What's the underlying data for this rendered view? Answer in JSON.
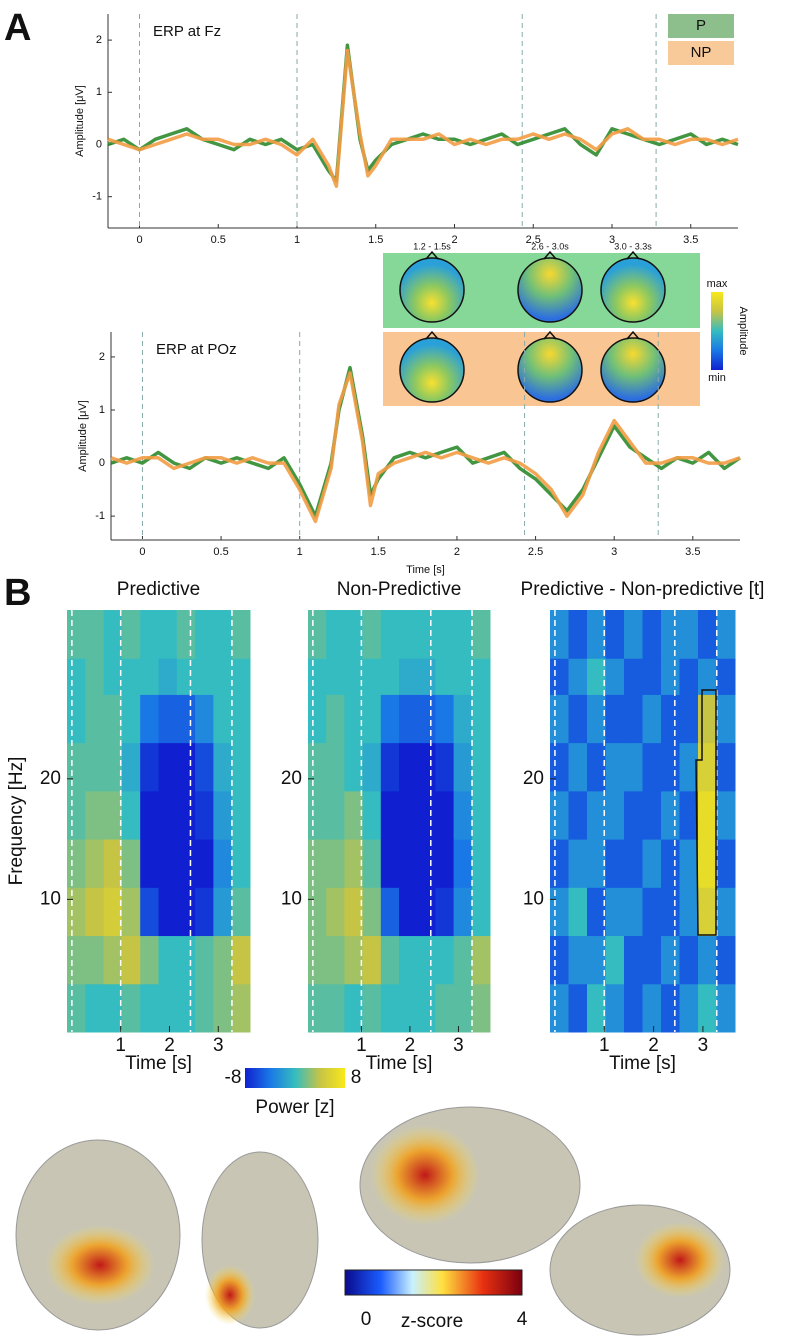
{
  "panel_labels": [
    "A",
    "B"
  ],
  "topomaps": {
    "labels": [
      "1.2 - 1.5s",
      "2.6 - 3.0s",
      "3.0 - 3.3s"
    ],
    "colorbar": {
      "max": "max",
      "min": "min",
      "label": "Amplitude"
    }
  },
  "brain_colorbar": {
    "lim": [
      0,
      4
    ],
    "label": "z-score"
  },
  "chart_data": [
    {
      "type": "line",
      "title": "ERP at Fz",
      "y_label": "Amplitude [μV]",
      "legend": "upper right",
      "xlim": [
        -0.2,
        3.8
      ],
      "ylim": [
        -1.6,
        2.5
      ],
      "xticks": [
        0,
        0.5,
        1,
        1.5,
        2,
        2.5,
        3,
        3.5
      ],
      "yticks": [
        -1,
        0,
        1,
        2
      ],
      "markers": [
        0,
        1,
        2.43,
        3.28
      ],
      "x": [
        -0.2,
        -0.1,
        0,
        0.1,
        0.2,
        0.3,
        0.4,
        0.5,
        0.6,
        0.7,
        0.8,
        0.9,
        1.0,
        1.1,
        1.2,
        1.25,
        1.32,
        1.4,
        1.45,
        1.5,
        1.6,
        1.7,
        1.8,
        1.9,
        2.0,
        2.1,
        2.2,
        2.3,
        2.4,
        2.5,
        2.6,
        2.7,
        2.8,
        2.9,
        3.0,
        3.1,
        3.2,
        3.3,
        3.4,
        3.5,
        3.6,
        3.7,
        3.8
      ],
      "series": [
        {
          "name": "P",
          "color": "#2e8b2e",
          "values": [
            0,
            0.1,
            -0.1,
            0.1,
            0.2,
            0.3,
            0.1,
            0,
            -0.1,
            0.1,
            0,
            0.1,
            -0.1,
            0,
            -0.5,
            -0.7,
            1.9,
            0.1,
            -0.5,
            -0.3,
            0,
            0.1,
            0.2,
            0.1,
            0.1,
            0,
            0.1,
            0.2,
            0,
            0.1,
            0.2,
            0.3,
            0,
            -0.2,
            0.3,
            0.2,
            0.1,
            0,
            0.1,
            0.2,
            0,
            0.1,
            0
          ]
        },
        {
          "name": "NP",
          "color": "#f39c45",
          "values": [
            0.1,
            0,
            -0.1,
            0,
            0.1,
            0.2,
            0.1,
            0.1,
            0,
            0,
            0.1,
            0,
            -0.2,
            0.1,
            -0.4,
            -0.8,
            1.8,
            0.2,
            -0.6,
            -0.4,
            0.1,
            0.1,
            0.1,
            0.2,
            0,
            0.1,
            0,
            0.1,
            0.1,
            0.2,
            0.1,
            0.2,
            0.1,
            -0.1,
            0.2,
            0.3,
            0.1,
            0.1,
            0,
            0.1,
            0.1,
            0,
            0.1
          ]
        }
      ]
    },
    {
      "type": "line",
      "title": "ERP at POz",
      "x_label": "Time [s]",
      "y_label": "Amplitude [μV]",
      "xlim": [
        -0.2,
        3.8
      ],
      "ylim": [
        -1.45,
        2.47
      ],
      "xticks": [
        0,
        0.5,
        1,
        1.5,
        2,
        2.5,
        3,
        3.5
      ],
      "yticks": [
        -1,
        0,
        1,
        2
      ],
      "markers": [
        0,
        1,
        2.43,
        3.28
      ],
      "x": [
        -0.2,
        -0.1,
        0,
        0.1,
        0.2,
        0.3,
        0.4,
        0.5,
        0.6,
        0.7,
        0.8,
        0.9,
        1.0,
        1.1,
        1.2,
        1.25,
        1.32,
        1.4,
        1.45,
        1.5,
        1.6,
        1.7,
        1.8,
        1.9,
        2.0,
        2.1,
        2.2,
        2.3,
        2.4,
        2.5,
        2.6,
        2.7,
        2.8,
        2.9,
        3.0,
        3.1,
        3.2,
        3.3,
        3.4,
        3.5,
        3.6,
        3.7,
        3.8
      ],
      "series": [
        {
          "name": "P",
          "color": "#2e8b2e",
          "values": [
            0,
            0.1,
            0,
            0.2,
            0,
            -0.1,
            0.1,
            0,
            0.1,
            0,
            -0.1,
            0.1,
            -0.4,
            -1.0,
            0,
            1.0,
            1.8,
            0.5,
            -0.6,
            -0.3,
            0.1,
            0.2,
            0.1,
            0.2,
            0.3,
            0,
            0.1,
            0.2,
            -0.1,
            -0.3,
            -0.6,
            -0.9,
            -0.5,
            0.1,
            0.7,
            0.3,
            0.1,
            -0.1,
            0.1,
            0,
            0.2,
            -0.1,
            0.1
          ]
        },
        {
          "name": "NP",
          "color": "#f39c45",
          "values": [
            0.1,
            0,
            0.1,
            0.1,
            -0.1,
            0,
            0.1,
            0.1,
            0,
            0.1,
            0,
            0,
            -0.5,
            -1.1,
            -0.1,
            1.1,
            1.7,
            0.4,
            -0.8,
            -0.2,
            0,
            0.1,
            0.2,
            0.1,
            0.2,
            0.1,
            0,
            0.1,
            0,
            -0.2,
            -0.5,
            -1.0,
            -0.6,
            0.2,
            0.8,
            0.4,
            0,
            0,
            0.1,
            0.1,
            0,
            0,
            0.1
          ]
        }
      ]
    },
    {
      "type": "heatmap",
      "title": "Predictive",
      "x_label": "Time [s]",
      "y_label": "Frequency [Hz]",
      "xlim": [
        -0.1,
        3.65
      ],
      "ylim": [
        -1,
        34
      ],
      "xticks": [
        1,
        2,
        3
      ],
      "yticks": [
        10,
        20
      ],
      "markers": [
        0,
        1,
        2.43,
        3.28
      ],
      "clim": [
        -8,
        8
      ],
      "colorbar_label": "Power [z]",
      "xbins": [
        -0.1,
        0.275,
        0.65,
        1.025,
        1.4,
        1.775,
        2.15,
        2.525,
        2.9,
        3.275,
        3.65
      ],
      "ybins": [
        -1,
        3,
        7,
        11,
        15,
        19,
        23,
        27,
        30,
        34
      ],
      "values": [
        [
          1,
          0,
          0,
          1,
          0,
          0,
          0,
          1,
          2,
          3
        ],
        [
          2,
          2,
          3,
          4,
          2,
          0,
          0,
          1,
          2,
          4
        ],
        [
          3,
          4,
          5,
          3,
          -6,
          -8,
          -8,
          -7,
          -2,
          1
        ],
        [
          2,
          3,
          4,
          2,
          -8,
          -8,
          -8,
          -8,
          -3,
          0
        ],
        [
          1,
          2,
          2,
          0,
          -8,
          -8,
          -8,
          -7,
          -2,
          0
        ],
        [
          1,
          1,
          1,
          -1,
          -7,
          -8,
          -8,
          -6,
          -1,
          0
        ],
        [
          0,
          1,
          1,
          0,
          -4,
          -5,
          -5,
          -3,
          0,
          0
        ],
        [
          0,
          1,
          0,
          0,
          0,
          -1,
          0,
          0,
          0,
          0
        ],
        [
          1,
          1,
          0,
          1,
          0,
          0,
          1,
          0,
          0,
          1
        ]
      ]
    },
    {
      "type": "heatmap",
      "title": "Non-Predictive",
      "x_label": "Time [s]",
      "xlim": [
        -0.1,
        3.65
      ],
      "ylim": [
        -1,
        34
      ],
      "xticks": [
        1,
        2,
        3
      ],
      "yticks": [
        10,
        20
      ],
      "markers": [
        0,
        1,
        2.43,
        3.28
      ],
      "clim": [
        -8,
        8
      ],
      "xbins": [
        -0.1,
        0.275,
        0.65,
        1.025,
        1.4,
        1.775,
        2.15,
        2.525,
        2.9,
        3.275,
        3.65
      ],
      "ybins": [
        -1,
        3,
        7,
        11,
        15,
        19,
        23,
        27,
        30,
        34
      ],
      "values": [
        [
          1,
          1,
          0,
          1,
          0,
          0,
          0,
          1,
          1,
          2
        ],
        [
          2,
          2,
          3,
          4,
          1,
          0,
          0,
          0,
          1,
          3
        ],
        [
          2,
          3,
          4,
          2,
          -5,
          -8,
          -8,
          -7,
          -3,
          0
        ],
        [
          2,
          2,
          3,
          1,
          -8,
          -8,
          -8,
          -8,
          -4,
          0
        ],
        [
          1,
          1,
          2,
          0,
          -8,
          -8,
          -8,
          -8,
          -3,
          0
        ],
        [
          1,
          1,
          0,
          -1,
          -7,
          -8,
          -8,
          -7,
          -2,
          0
        ],
        [
          0,
          1,
          0,
          0,
          -4,
          -5,
          -5,
          -4,
          -1,
          0
        ],
        [
          0,
          0,
          0,
          0,
          0,
          -1,
          -1,
          0,
          0,
          0
        ],
        [
          1,
          0,
          0,
          1,
          0,
          0,
          0,
          0,
          0,
          1
        ]
      ]
    },
    {
      "type": "heatmap",
      "title": "Predictive - Non-predictive [t]",
      "x_label": "Time [s]",
      "xlim": [
        -0.1,
        3.65
      ],
      "ylim": [
        -1,
        34
      ],
      "xticks": [
        1,
        2,
        3
      ],
      "yticks": [
        10,
        20
      ],
      "markers": [
        0,
        1,
        2.43,
        3.28
      ],
      "clim": [
        -3,
        3
      ],
      "xbins": [
        -0.1,
        0.275,
        0.65,
        1.025,
        1.4,
        1.775,
        2.15,
        2.525,
        2.9,
        3.275,
        3.65
      ],
      "ybins": [
        -1,
        3,
        7,
        11,
        15,
        19,
        23,
        27,
        30,
        34
      ],
      "values": [
        [
          -1,
          -2,
          0,
          -1,
          -2,
          -1,
          -2,
          -1,
          0,
          -1
        ],
        [
          -2,
          -1,
          -1,
          0,
          -2,
          -2,
          -1,
          -2,
          -1,
          -2
        ],
        [
          -1,
          0,
          -2,
          -1,
          -1,
          -2,
          -2,
          -1,
          2,
          -1
        ],
        [
          -2,
          -1,
          -1,
          -2,
          -2,
          -1,
          -2,
          -1,
          2.5,
          -2
        ],
        [
          -1,
          -2,
          -1,
          -1,
          -2,
          -2,
          -1,
          -2,
          2.5,
          -1
        ],
        [
          -2,
          -1,
          -2,
          -1,
          -1,
          -2,
          -2,
          -1,
          2,
          -2
        ],
        [
          -1,
          -2,
          -1,
          -2,
          -2,
          -1,
          -2,
          -2,
          1.5,
          -1
        ],
        [
          -2,
          -1,
          0,
          -1,
          -2,
          -2,
          -1,
          -2,
          -1,
          -2
        ],
        [
          -1,
          -2,
          -1,
          -2,
          -1,
          -2,
          -1,
          -1,
          -2,
          -1
        ]
      ]
    }
  ]
}
